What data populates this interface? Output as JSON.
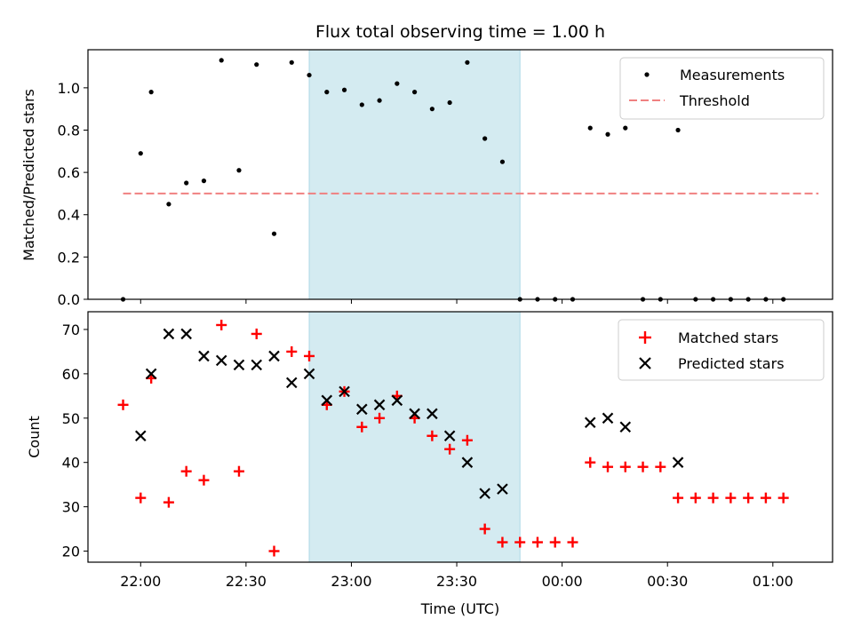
{
  "chart_data": [
    {
      "type": "scatter",
      "title": "Flux total observing time = 1.00 h",
      "xlabel": "",
      "ylabel": "Matched/Predicted stars",
      "ylim": [
        0,
        1.18
      ],
      "xlim": [
        "21:45",
        "01:17"
      ],
      "yticks": [
        "0.0",
        "0.2",
        "0.4",
        "0.6",
        "0.8",
        "1.0"
      ],
      "ytick_values": [
        0,
        0.2,
        0.4,
        0.6,
        0.8,
        1.0
      ],
      "shaded_region": {
        "start": "22:48",
        "end": "23:48",
        "color": "#d4ebf1"
      },
      "legend_position": "top-right",
      "series": [
        {
          "name": "Measurements",
          "marker": "dot",
          "color": "#000000",
          "x": [
            "21:55",
            "22:00",
            "22:03",
            "22:08",
            "22:13",
            "22:18",
            "22:23",
            "22:28",
            "22:33",
            "22:38",
            "22:43",
            "22:48",
            "22:53",
            "22:58",
            "23:03",
            "23:08",
            "23:13",
            "23:18",
            "23:23",
            "23:28",
            "23:33",
            "23:38",
            "23:43",
            "23:48",
            "23:53",
            "23:58",
            "00:03",
            "00:08",
            "00:13",
            "00:18",
            "00:23",
            "00:28",
            "00:33",
            "00:38",
            "00:43",
            "00:48",
            "00:53",
            "00:58",
            "01:03"
          ],
          "y": [
            0.0,
            0.69,
            0.98,
            0.45,
            0.55,
            0.56,
            1.13,
            0.61,
            1.11,
            0.31,
            1.12,
            1.06,
            0.98,
            0.99,
            0.92,
            0.94,
            1.02,
            0.98,
            0.9,
            0.93,
            1.12,
            0.76,
            0.65,
            0.0,
            0.0,
            0.0,
            0.0,
            0.81,
            0.78,
            0.81,
            0.0,
            0.0,
            0.8,
            0.0,
            0.0,
            0.0,
            0.0,
            0.0,
            0.0
          ]
        },
        {
          "name": "Threshold",
          "marker": "dashed-line",
          "color": "#f08080",
          "x": [
            "21:55",
            "01:13"
          ],
          "y": [
            0.5,
            0.5
          ]
        }
      ]
    },
    {
      "type": "scatter",
      "title": "",
      "xlabel": "Time (UTC)",
      "ylabel": "Count",
      "ylim": [
        17.5,
        74
      ],
      "xlim": [
        "21:45",
        "01:17"
      ],
      "yticks": [
        "20",
        "30",
        "40",
        "50",
        "60",
        "70"
      ],
      "ytick_values": [
        20,
        30,
        40,
        50,
        60,
        70
      ],
      "xticks": [
        "22:00",
        "22:30",
        "23:00",
        "23:30",
        "00:00",
        "00:30",
        "01:00"
      ],
      "shaded_region": {
        "start": "22:48",
        "end": "23:48",
        "color": "#d4ebf1"
      },
      "legend_position": "top-right",
      "series": [
        {
          "name": "Matched stars",
          "marker": "plus",
          "color": "#ff0000",
          "x": [
            "21:55",
            "22:00",
            "22:03",
            "22:08",
            "22:13",
            "22:18",
            "22:23",
            "22:28",
            "22:33",
            "22:38",
            "22:43",
            "22:48",
            "22:53",
            "22:58",
            "23:03",
            "23:08",
            "23:13",
            "23:18",
            "23:23",
            "23:28",
            "23:33",
            "23:38",
            "23:43",
            "23:48",
            "23:53",
            "23:58",
            "00:03",
            "00:08",
            "00:13",
            "00:18",
            "00:23",
            "00:28",
            "00:33",
            "00:38",
            "00:43",
            "00:48",
            "00:53",
            "00:58",
            "01:03"
          ],
          "y": [
            53,
            32,
            59,
            31,
            38,
            36,
            71,
            38,
            69,
            20,
            65,
            64,
            53,
            56,
            48,
            50,
            55,
            50,
            46,
            43,
            45,
            25,
            22,
            22,
            22,
            22,
            22,
            40,
            39,
            39,
            39,
            39,
            32,
            32,
            32,
            32,
            32,
            32,
            32
          ]
        },
        {
          "name": "Predicted stars",
          "marker": "x",
          "color": "#000000",
          "x": [
            "22:00",
            "22:03",
            "22:08",
            "22:13",
            "22:18",
            "22:23",
            "22:28",
            "22:33",
            "22:38",
            "22:43",
            "22:48",
            "22:53",
            "22:58",
            "23:03",
            "23:08",
            "23:13",
            "23:18",
            "23:23",
            "23:28",
            "23:33",
            "23:38",
            "23:43",
            "00:08",
            "00:13",
            "00:18",
            "00:33"
          ],
          "y": [
            46,
            60,
            69,
            69,
            64,
            63,
            62,
            62,
            64,
            58,
            60,
            54,
            56,
            52,
            53,
            54,
            51,
            51,
            46,
            40,
            33,
            34,
            49,
            50,
            48,
            40
          ]
        }
      ]
    }
  ]
}
